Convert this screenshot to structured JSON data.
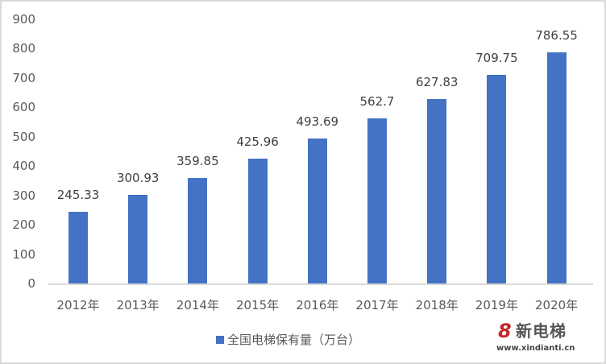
{
  "chart_data": {
    "type": "bar",
    "title": "",
    "xlabel": "",
    "ylabel": "",
    "ylim": [
      0,
      900
    ],
    "yticks": [
      0,
      100,
      200,
      300,
      400,
      500,
      600,
      700,
      800,
      900
    ],
    "grid": false,
    "legend_position": "bottom",
    "categories": [
      "2012年",
      "2013年",
      "2014年",
      "2015年",
      "2016年",
      "2017年",
      "2018年",
      "2019年",
      "2020年"
    ],
    "series": [
      {
        "name": "全国电梯保有量（万台）",
        "color": "#4472c4",
        "values": [
          245.33,
          300.93,
          359.85,
          425.96,
          493.69,
          562.7,
          627.83,
          709.75,
          786.55
        ]
      }
    ],
    "data_labels": [
      "245.33",
      "300.93",
      "359.85",
      "425.96",
      "493.69",
      "562.7",
      "627.83",
      "709.75",
      "786.55"
    ]
  },
  "legend": {
    "label": "全国电梯保有量（万台）"
  },
  "watermark": {
    "title": "新电梯",
    "url": "www.xindianti.cn"
  }
}
